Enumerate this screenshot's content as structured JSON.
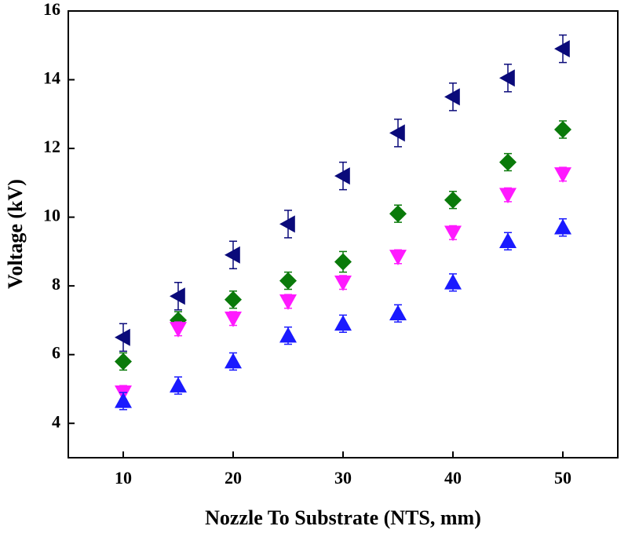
{
  "chart_data": {
    "type": "scatter",
    "x_label": "Nozzle To Substrate (NTS, mm)",
    "y_label": "Voltage (kV)",
    "x": [
      10,
      15,
      20,
      25,
      30,
      35,
      40,
      45,
      50
    ],
    "xlim": [
      5,
      55
    ],
    "xticks": [
      10,
      20,
      30,
      40,
      50
    ],
    "ylim": [
      3,
      16
    ],
    "yticks": [
      4,
      6,
      8,
      10,
      12,
      14,
      16
    ],
    "series": [
      {
        "color": "#0a0a7a",
        "marker": "triangle-left",
        "values": [
          6.5,
          7.7,
          8.9,
          9.8,
          11.2,
          12.45,
          13.5,
          14.05,
          14.9
        ],
        "errors": [
          0.4,
          0.4,
          0.4,
          0.4,
          0.4,
          0.4,
          0.4,
          0.4,
          0.4
        ]
      },
      {
        "color": "#0a7a0a",
        "marker": "diamond",
        "values": [
          5.8,
          7.0,
          7.6,
          8.15,
          8.7,
          10.1,
          10.5,
          11.6,
          12.55
        ],
        "errors": [
          0.25,
          0.25,
          0.25,
          0.25,
          0.3,
          0.25,
          0.25,
          0.25,
          0.25
        ]
      },
      {
        "color": "#ff1aff",
        "marker": "triangle-down",
        "values": [
          4.9,
          6.75,
          7.05,
          7.55,
          8.1,
          8.85,
          9.55,
          10.65,
          11.25
        ],
        "errors": [
          0.2,
          0.2,
          0.2,
          0.2,
          0.2,
          0.2,
          0.2,
          0.2,
          0.2
        ]
      },
      {
        "color": "#1a1aff",
        "marker": "triangle-up",
        "values": [
          4.65,
          5.1,
          5.8,
          6.55,
          6.9,
          7.2,
          8.1,
          9.3,
          9.7
        ],
        "errors": [
          0.25,
          0.25,
          0.25,
          0.25,
          0.25,
          0.25,
          0.25,
          0.25,
          0.25
        ]
      }
    ]
  }
}
